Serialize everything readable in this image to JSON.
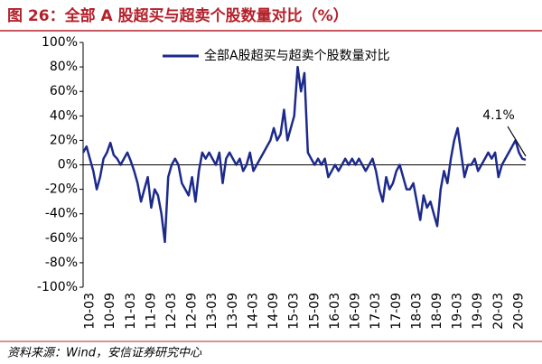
{
  "chart_data": {
    "type": "line",
    "title": "图 26：全部 A 股超买与超卖个股数量对比（%）",
    "source": "资料来源：Wind，安信证券研究中心",
    "annotation": "4.1%",
    "legend": "top",
    "categories": [
      null,
      null,
      "10-03",
      null,
      null,
      null,
      null,
      null,
      "10-09",
      null,
      null,
      null,
      null,
      null,
      "11-03",
      null,
      null,
      null,
      null,
      null,
      "11-09",
      null,
      null,
      null,
      null,
      null,
      "12-03",
      null,
      null,
      null,
      null,
      null,
      "12-09",
      null,
      null,
      null,
      null,
      null,
      "13-03",
      null,
      null,
      null,
      null,
      null,
      "13-09",
      null,
      null,
      null,
      null,
      null,
      "14-03",
      null,
      null,
      null,
      null,
      null,
      "14-09",
      null,
      null,
      null,
      null,
      null,
      "15-03",
      null,
      null,
      null,
      null,
      null,
      "15-09",
      null,
      null,
      null,
      null,
      null,
      "16-03",
      null,
      null,
      null,
      null,
      null,
      "16-09",
      null,
      null,
      null,
      null,
      null,
      "17-03",
      null,
      null,
      null,
      null,
      null,
      "17-09",
      null,
      null,
      null,
      null,
      null,
      "18-03",
      null,
      null,
      null,
      null,
      null,
      "18-09",
      null,
      null,
      null,
      null,
      null,
      "19-03",
      null,
      null,
      null,
      null,
      null,
      "19-09",
      null,
      null,
      null,
      null,
      null,
      "20-03",
      null,
      null,
      null,
      null,
      null,
      "20-09",
      null,
      null
    ],
    "series": [
      {
        "name": "全部A股超买与超卖个股数量对比",
        "color": "#1c2a8c",
        "values": [
          10,
          15,
          5,
          -5,
          -20,
          -10,
          5,
          10,
          18,
          8,
          5,
          0,
          5,
          10,
          3,
          -5,
          -15,
          -30,
          -20,
          -10,
          -35,
          -20,
          -25,
          -40,
          -63,
          -10,
          0,
          5,
          0,
          -15,
          -20,
          -25,
          -10,
          -30,
          -5,
          10,
          5,
          10,
          5,
          0,
          10,
          -15,
          5,
          10,
          5,
          0,
          5,
          -5,
          0,
          10,
          -5,
          0,
          5,
          10,
          15,
          20,
          30,
          20,
          25,
          45,
          20,
          30,
          40,
          80,
          60,
          75,
          10,
          5,
          0,
          5,
          0,
          5,
          -10,
          -5,
          0,
          -5,
          0,
          5,
          0,
          5,
          0,
          5,
          0,
          -5,
          0,
          5,
          -5,
          -20,
          -30,
          -10,
          -20,
          -15,
          -5,
          0,
          -10,
          -20,
          -20,
          -15,
          -30,
          -45,
          -25,
          -35,
          -30,
          -40,
          -50,
          -20,
          -5,
          -15,
          5,
          20,
          30,
          10,
          -10,
          0,
          0,
          5,
          -5,
          0,
          5,
          10,
          5,
          10,
          -10,
          0,
          5,
          10,
          15,
          20,
          10,
          5,
          4.1
        ]
      }
    ],
    "ylim": [
      -100,
      100
    ],
    "yticks": [
      {
        "value": -100,
        "label": "-100%"
      },
      {
        "value": -80,
        "label": "-80%"
      },
      {
        "value": -60,
        "label": "-60%"
      },
      {
        "value": -40,
        "label": "-40%"
      },
      {
        "value": -20,
        "label": "-20%"
      },
      {
        "value": 0,
        "label": "0%"
      },
      {
        "value": 20,
        "label": "20%"
      },
      {
        "value": 40,
        "label": "40%"
      },
      {
        "value": 60,
        "label": "60%"
      },
      {
        "value": 80,
        "label": "80%"
      },
      {
        "value": 100,
        "label": "100%"
      }
    ],
    "grid": false
  }
}
